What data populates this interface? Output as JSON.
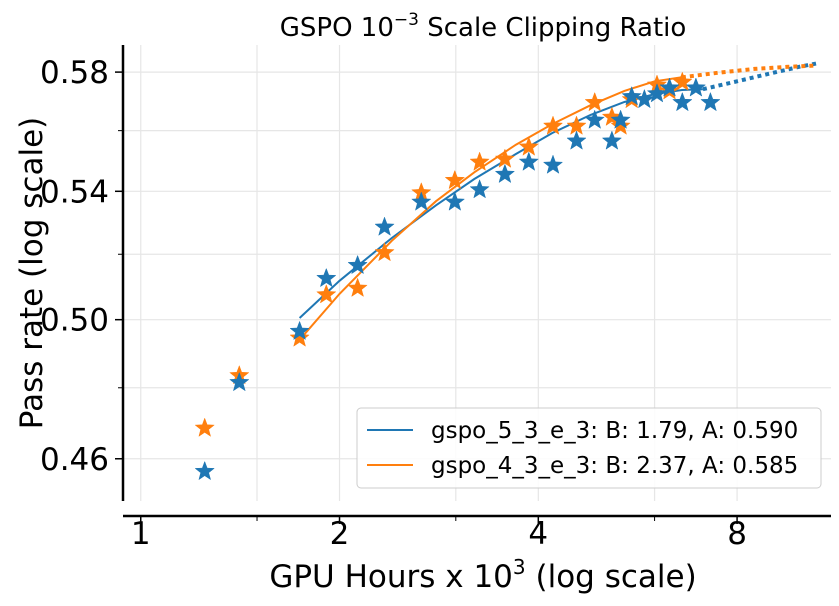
{
  "chart_data": {
    "type": "scatter",
    "title": {
      "base": "GSPO 10",
      "exp": "−3",
      "rest": " Scale Clipping Ratio"
    },
    "xlabel": {
      "base": "GPU Hours x 10",
      "exp": "3",
      "rest": " (log scale)"
    },
    "ylabel": "Pass rate (log scale)",
    "xscale": "log2",
    "yscale": "log",
    "xlim": [
      0.94,
      11.1
    ],
    "ylim": [
      0.4485,
      0.5895
    ],
    "xticks": [
      1,
      2,
      4,
      8
    ],
    "xtick_labels": [
      "1",
      "2",
      "4",
      "8"
    ],
    "xminor": [
      1.5,
      3,
      6
    ],
    "yticks": [
      0.46,
      0.5,
      0.54,
      0.58
    ],
    "ytick_labels": [
      "0.46",
      "0.50",
      "0.54",
      "0.58"
    ],
    "yminor": [
      0.48,
      0.52,
      0.56
    ],
    "grid": true,
    "legend_position": "lower-right",
    "series": [
      {
        "name": "gspo_5_3_e_3",
        "legend_label": "gspo_5_3_e_3: B: 1.79, A: 0.590",
        "color": "#1f77b4",
        "points": [
          [
            1.25,
            0.4565
          ],
          [
            1.41,
            0.4815
          ],
          [
            1.74,
            0.4965
          ],
          [
            1.91,
            0.5125
          ],
          [
            2.13,
            0.5165
          ],
          [
            2.34,
            0.5285
          ],
          [
            2.66,
            0.5365
          ],
          [
            2.99,
            0.5365
          ],
          [
            3.26,
            0.5405
          ],
          [
            3.56,
            0.5455
          ],
          [
            3.87,
            0.5495
          ],
          [
            4.21,
            0.5485
          ],
          [
            4.57,
            0.5565
          ],
          [
            4.87,
            0.5635
          ],
          [
            5.17,
            0.5565
          ],
          [
            5.33,
            0.5635
          ],
          [
            5.54,
            0.5715
          ],
          [
            5.79,
            0.5705
          ],
          [
            6.05,
            0.5725
          ],
          [
            6.32,
            0.5745
          ],
          [
            6.61,
            0.5695
          ],
          [
            6.93,
            0.5745
          ],
          [
            7.29,
            0.5695
          ]
        ],
        "fit": {
          "solid_x": [
            1.74,
            2.0,
            2.4,
            2.8,
            3.2,
            3.7,
            4.2,
            4.8,
            5.4,
            6.0,
            6.6,
            7.1
          ],
          "solid_y": [
            0.5005,
            0.5118,
            0.5251,
            0.5355,
            0.544,
            0.5522,
            0.5592,
            0.5653,
            0.5697,
            0.5724,
            0.5738,
            0.5741
          ],
          "dotted_x": [
            7.1,
            8.0,
            9.0,
            10.0,
            10.55
          ],
          "dotted_y": [
            0.5741,
            0.5768,
            0.5796,
            0.582,
            0.583
          ]
        }
      },
      {
        "name": "gspo_4_3_e_3",
        "legend_label": "gspo_4_3_e_3: B: 2.37, A: 0.585",
        "color": "#ff7f0e",
        "points": [
          [
            1.25,
            0.4685
          ],
          [
            1.41,
            0.4835
          ],
          [
            1.74,
            0.4945
          ],
          [
            1.91,
            0.5075
          ],
          [
            2.13,
            0.5095
          ],
          [
            2.34,
            0.5205
          ],
          [
            2.66,
            0.5395
          ],
          [
            2.99,
            0.5435
          ],
          [
            3.26,
            0.5495
          ],
          [
            3.56,
            0.5505
          ],
          [
            3.87,
            0.5545
          ],
          [
            4.21,
            0.5615
          ],
          [
            4.57,
            0.5615
          ],
          [
            4.87,
            0.5695
          ],
          [
            5.17,
            0.5645
          ],
          [
            5.33,
            0.5615
          ],
          [
            5.54,
            0.5705
          ],
          [
            6.05,
            0.5755
          ],
          [
            6.32,
            0.5735
          ],
          [
            6.61,
            0.5765
          ]
        ],
        "fit": {
          "solid_x": [
            1.74,
            2.0,
            2.4,
            2.8,
            3.2,
            3.7,
            4.2,
            4.8,
            5.4,
            6.0,
            6.6
          ],
          "solid_y": [
            0.494,
            0.5078,
            0.5242,
            0.5368,
            0.5462,
            0.5553,
            0.5622,
            0.5686,
            0.5735,
            0.5768,
            0.5782
          ],
          "dotted_x": [
            6.6,
            7.5,
            8.5,
            9.5,
            10.55
          ],
          "dotted_y": [
            0.5782,
            0.5798,
            0.5811,
            0.5818,
            0.5823
          ]
        }
      }
    ]
  }
}
